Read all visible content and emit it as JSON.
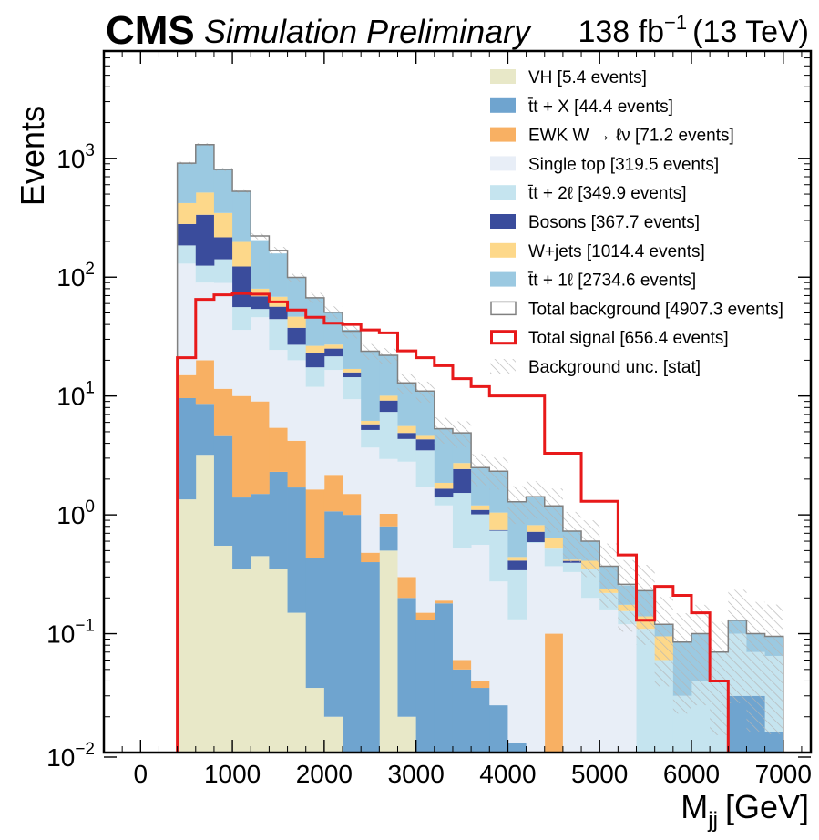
{
  "header": {
    "experiment": "CMS",
    "status": "Simulation Preliminary",
    "lumi": "138 fb",
    "lumi_exp": "−1",
    "energy": "(13 TeV)"
  },
  "chart_data": {
    "type": "bar",
    "subtype": "stacked-histogram",
    "title": "",
    "xlabel": "M",
    "xlabel_sub": "jj",
    "xlabel_unit": "[GeV]",
    "ylabel": "Events",
    "xlim": [
      -400,
      7300
    ],
    "ylim": [
      0.01,
      8000
    ],
    "yscale": "log",
    "x_ticks": [
      0,
      1000,
      2000,
      3000,
      4000,
      5000,
      6000,
      7000
    ],
    "x_tick_labels": [
      "0",
      "1000",
      "2000",
      "3000",
      "4000",
      "5000",
      "6000",
      "7000"
    ],
    "y_ticks": [
      0.01,
      0.1,
      1,
      10,
      100,
      1000
    ],
    "y_tick_labels": [
      {
        "base": "10",
        "exp": "−2"
      },
      {
        "base": "10",
        "exp": "−1"
      },
      {
        "base": "10",
        "exp": "0"
      },
      {
        "base": "10",
        "exp": "1"
      },
      {
        "base": "10",
        "exp": "2"
      },
      {
        "base": "10",
        "exp": "3"
      }
    ],
    "grid": false,
    "legend_position": "top-right",
    "bin_edges": [
      400,
      600,
      800,
      1000,
      1200,
      1400,
      1600,
      1800,
      2000,
      2200,
      2400,
      2600,
      2800,
      3000,
      3200,
      3400,
      3600,
      3800,
      4000,
      4200,
      4400,
      4600,
      4800,
      5000,
      5200,
      5400,
      5600,
      5800,
      6000,
      6200,
      6400,
      6600,
      6800,
      7000
    ],
    "stack": [
      {
        "name": "VH [5.4 events]",
        "color": "#e8e8c8",
        "values": [
          1.35,
          3.2,
          0.55,
          0.35,
          0.45,
          0.35,
          0.15,
          0.035,
          0.02,
          0,
          0,
          0.5,
          0.02,
          0,
          0,
          0,
          0,
          0,
          0,
          0,
          0,
          0,
          0,
          0,
          0,
          0,
          0,
          0,
          0,
          0,
          0,
          0,
          0
        ]
      },
      {
        "name": "t̄t + X [44.4 events]",
        "color": "#6fa4cf",
        "values": [
          8.25,
          5.4,
          4.05,
          1.05,
          1.05,
          1.95,
          1.55,
          0.4,
          1.05,
          1,
          0.4,
          0.3,
          0.18,
          0.13,
          0.18,
          0.05,
          0.035,
          0.025,
          0.012,
          0,
          0,
          0,
          0,
          0,
          0,
          0,
          0,
          0,
          0,
          0,
          0.03,
          0.03,
          0.015
        ]
      },
      {
        "name": "EWK W → ℓν [71.2 events]",
        "color": "#f8b063",
        "values": [
          5.4,
          11.4,
          6.9,
          8.6,
          7.5,
          3.1,
          2.5,
          1.2,
          1.1,
          0.5,
          0.08,
          0.22,
          0.1,
          0.02,
          0.01,
          0.01,
          0.005,
          0,
          0,
          0,
          0.1,
          0,
          0,
          0.01,
          0,
          0,
          0,
          0,
          0,
          0,
          0,
          0,
          0
        ]
      },
      {
        "name": "Single top [319.5 events]",
        "color": "#e8eef7",
        "values": [
          115,
          70,
          78,
          26,
          37,
          19,
          15.8,
          10.3,
          14.4,
          7.9,
          3.2,
          1.93,
          2.5,
          1.58,
          1.01,
          0.47,
          0.52,
          0.25,
          0.12,
          0.58,
          0.27,
          0.33,
          0.2,
          0.15,
          0.12,
          0,
          0,
          0,
          0,
          0,
          0,
          0,
          0
        ]
      },
      {
        "name": "t̄t + 2ℓ [349.9 events]",
        "color": "#c5e4ef",
        "values": [
          55,
          35,
          52,
          20,
          8,
          20,
          7,
          5.5,
          5,
          5,
          1.5,
          4.4,
          1.55,
          1.76,
          0.2,
          1,
          0.45,
          0.46,
          0.21,
          0.01,
          0.15,
          0.065,
          0.15,
          0.06,
          0.035,
          0.11,
          0.06,
          0.03,
          0.04,
          0.07,
          0.07,
          0.04,
          0.05
        ]
      },
      {
        "name": "Bosons [367.7 events]",
        "color": "#3a4c9c",
        "values": [
          95,
          210,
          75,
          67,
          15,
          12,
          10.5,
          5.5,
          3.5,
          1.4,
          0.6,
          1.8,
          0.54,
          0.83,
          0.26,
          0.9,
          0.09,
          0.01,
          0.07,
          0.13,
          0,
          0.015,
          0.001,
          0,
          0,
          0,
          0,
          0,
          0,
          0,
          0,
          0,
          0
        ]
      },
      {
        "name": "W+jets [1014.4 events]",
        "color": "#fdd88a",
        "values": [
          140,
          180,
          130,
          75,
          11,
          12,
          9,
          3.5,
          2,
          1.1,
          0.4,
          0.9,
          0.7,
          0.3,
          0.2,
          0.3,
          0.1,
          0.3,
          0.03,
          0.1,
          0.12,
          0.01,
          0.06,
          0.02,
          0.02,
          0.03,
          0.035,
          0,
          0,
          0,
          0,
          0,
          0
        ]
      },
      {
        "name": "t̄t + 1ℓ [2734.6 events]",
        "color": "#9bc9e1",
        "values": [
          490,
          790,
          460,
          330,
          125,
          90,
          53,
          41,
          23.6,
          19.2,
          17.6,
          12,
          7.34,
          6.4,
          3.44,
          2.2,
          1.3,
          1.26,
          0.84,
          0.6,
          0.55,
          0.31,
          0.19,
          0.13,
          0.08,
          0.09,
          0.025,
          0.055,
          0.06,
          0,
          0.03,
          0.03,
          0.03
        ]
      }
    ],
    "total_background": {
      "name": "Total background [4907.3 events]",
      "color": "#808080",
      "values": [
        910,
        1305,
        806,
        528,
        222,
        168,
        99.5,
        67,
        50.7,
        35.1,
        23.8,
        22,
        12.9,
        11,
        5.3,
        4.9,
        2.5,
        2.33,
        1.29,
        1.42,
        1.19,
        0.73,
        0.6,
        0.37,
        0.26,
        0.23,
        0.12,
        0.085,
        0.1,
        0.07,
        0.13,
        0.1,
        0.095
      ]
    },
    "total_signal": {
      "name": "Total signal [656.4 events]",
      "color": "#e8191a",
      "values": [
        21,
        65,
        71,
        73,
        72,
        62,
        53,
        46,
        41,
        40,
        36,
        34,
        24,
        21,
        18,
        14,
        12,
        10,
        10,
        10,
        3.3,
        3.3,
        1.3,
        1.3,
        0.46,
        0.13,
        0.25,
        0.21,
        0.15,
        0.04,
        0,
        0,
        0
      ]
    },
    "unc_label": "Background unc. [stat]",
    "unc_rel": [
      0.03,
      0.03,
      0.03,
      0.04,
      0.06,
      0.07,
      0.08,
      0.1,
      0.12,
      0.13,
      0.15,
      0.15,
      0.2,
      0.2,
      0.25,
      0.25,
      0.3,
      0.3,
      0.35,
      0.35,
      0.4,
      0.45,
      0.5,
      0.55,
      0.6,
      0.65,
      0.7,
      0.75,
      0.75,
      0.8,
      0.8,
      0.85,
      0.85
    ]
  }
}
